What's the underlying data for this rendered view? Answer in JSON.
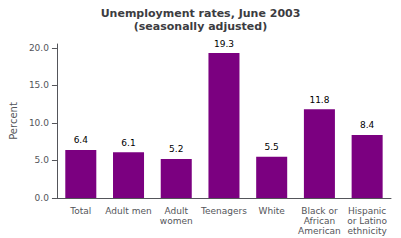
{
  "chart_data": {
    "type": "bar",
    "title": "Unemployment rates, June 2003\n(seasonally adjusted)",
    "categories": [
      "Total",
      "Adult men",
      "Adult\nwomen",
      "Teenagers",
      "White",
      "Black or\nAfrican\nAmerican",
      "Hispanic\nor Latino\nethnicity"
    ],
    "values": [
      6.4,
      6.1,
      5.2,
      19.3,
      5.5,
      11.8,
      8.4
    ],
    "color": "#7b0080",
    "ylabel": "Percent",
    "ylim": [
      0,
      20.5
    ],
    "yticks": [
      {
        "value": 0.0,
        "label": "0.0"
      },
      {
        "value": 5.0,
        "label": "5.0"
      },
      {
        "value": 10.0,
        "label": "10.0"
      },
      {
        "value": 15.0,
        "label": "15.0"
      },
      {
        "value": 20.0,
        "label": "20.0"
      }
    ],
    "grid": false,
    "data_labels": true
  }
}
